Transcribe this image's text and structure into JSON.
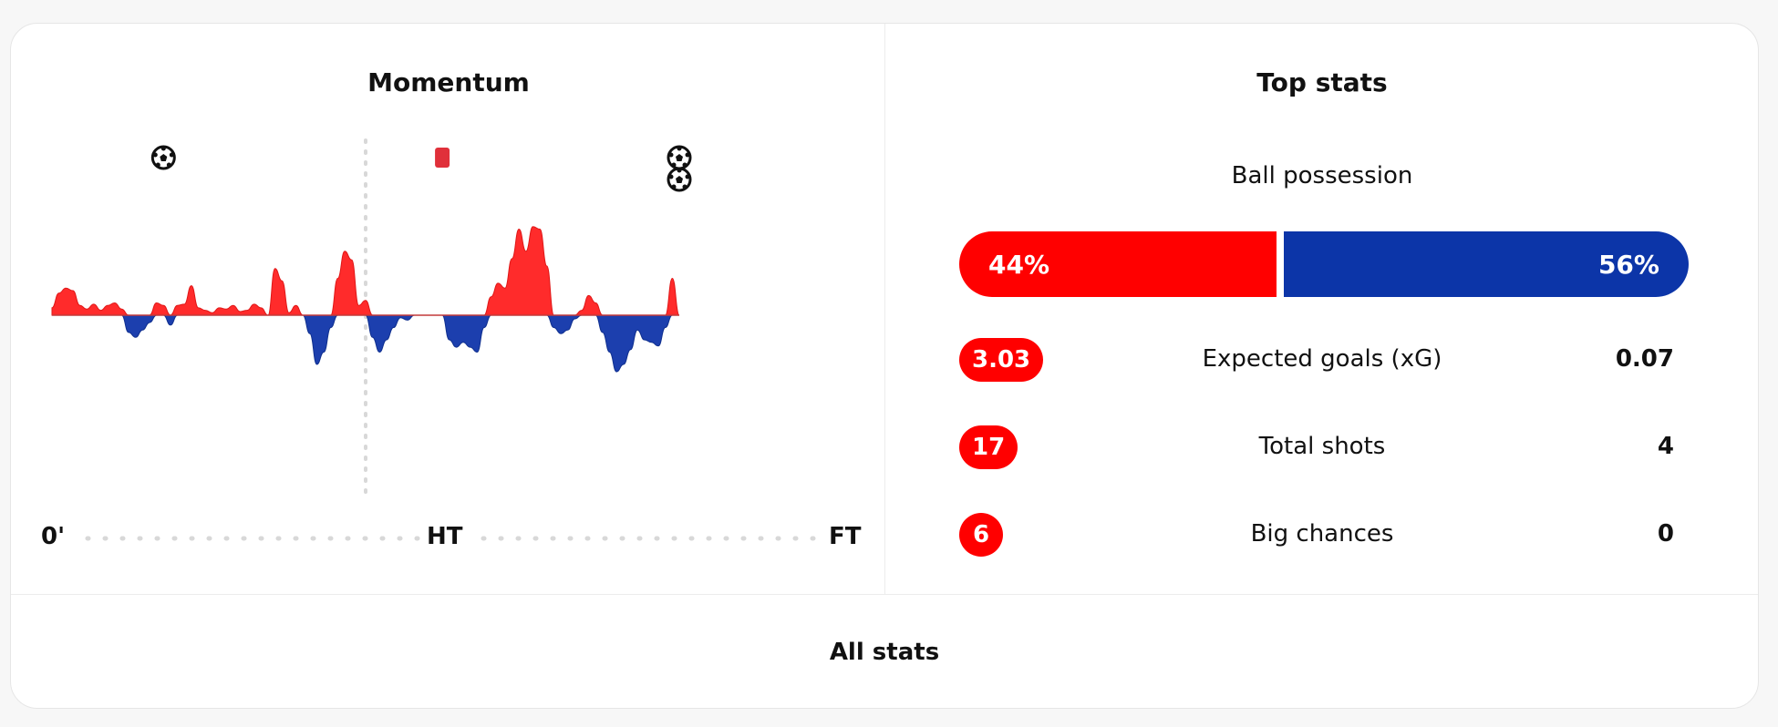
{
  "momentum": {
    "title": "Momentum",
    "labels": {
      "start": "0'",
      "half": "HT",
      "end": "FT"
    },
    "colors": {
      "home": "#ff2b2b",
      "away": "#1c3fae"
    },
    "events": [
      {
        "type": "goal-icon",
        "minute": 16,
        "count": 1
      },
      {
        "type": "red-card-icon",
        "minute": 56,
        "count": 1
      },
      {
        "type": "goal-icon",
        "minute": 90,
        "count": 2
      }
    ]
  },
  "chart_data": {
    "type": "area",
    "x_unit": "minute",
    "xlim": [
      0,
      90
    ],
    "ylim": [
      -100,
      100
    ],
    "x": [
      0,
      1,
      2,
      3,
      4,
      5,
      6,
      7,
      8,
      9,
      10,
      11,
      12,
      13,
      14,
      15,
      16,
      17,
      18,
      19,
      20,
      21,
      22,
      23,
      24,
      25,
      26,
      27,
      28,
      29,
      30,
      31,
      32,
      33,
      34,
      35,
      36,
      37,
      38,
      39,
      40,
      41,
      42,
      43,
      44,
      45,
      46,
      47,
      48,
      49,
      50,
      51,
      52,
      53,
      54,
      55,
      56,
      57,
      58,
      59,
      60,
      61,
      62,
      63,
      64,
      65,
      66,
      67,
      68,
      69,
      70,
      71,
      72,
      73,
      74,
      75,
      76,
      77,
      78,
      79,
      80,
      81,
      82,
      83,
      84,
      85,
      86,
      87,
      88,
      89,
      90
    ],
    "values": [
      6,
      18,
      22,
      20,
      8,
      5,
      9,
      4,
      8,
      10,
      5,
      -14,
      -18,
      -12,
      -6,
      10,
      8,
      -8,
      8,
      9,
      24,
      6,
      4,
      2,
      6,
      5,
      8,
      3,
      4,
      9,
      6,
      0,
      38,
      28,
      2,
      8,
      0,
      -15,
      -40,
      -30,
      -10,
      30,
      52,
      45,
      8,
      12,
      -18,
      -30,
      -20,
      -10,
      -2,
      -4,
      0,
      0,
      0,
      0,
      0,
      -20,
      -26,
      -22,
      -26,
      -30,
      -10,
      15,
      26,
      22,
      46,
      70,
      52,
      72,
      70,
      40,
      -10,
      -15,
      -12,
      -3,
      4,
      16,
      10,
      -14,
      -30,
      -46,
      -40,
      -28,
      -12,
      -20,
      -22,
      -25,
      -10,
      30,
      0
    ]
  },
  "topstats": {
    "title": "Top stats",
    "possession": {
      "label": "Ball possession",
      "home_pct": 44,
      "away_pct": 56,
      "home_text": "44%",
      "away_text": "56%"
    },
    "rows": [
      {
        "label": "Expected goals (xG)",
        "home": "3.03",
        "away": "0.07"
      },
      {
        "label": "Total shots",
        "home": "17",
        "away": "4"
      },
      {
        "label": "Big chances",
        "home": "6",
        "away": "0"
      }
    ]
  },
  "footer": {
    "all_stats_label": "All stats"
  }
}
